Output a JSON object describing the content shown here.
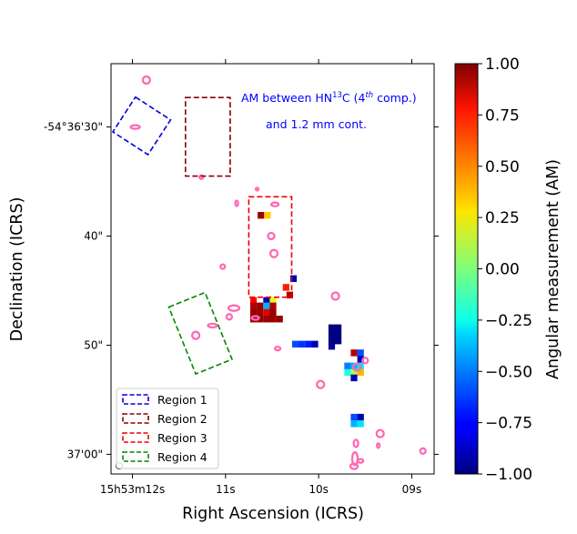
{
  "chart_data": {
    "type": "heatmap",
    "xlabel": "Right Ascension (ICRS)",
    "ylabel": "Declination (ICRS)",
    "x_ticks": [
      {
        "ra_s": 12,
        "label": "15h53m12s"
      },
      {
        "ra_s": 11,
        "label": "11s"
      },
      {
        "ra_s": 10,
        "label": "10s"
      },
      {
        "ra_s": 9,
        "label": "09s"
      }
    ],
    "y_ticks": [
      {
        "dec_s": 30,
        "label": "-54°36'30\""
      },
      {
        "dec_s": 40,
        "label": "40\""
      },
      {
        "dec_s": 50,
        "label": "50\""
      },
      {
        "dec_s": 60,
        "label": "37'00\""
      }
    ],
    "xlim_ra_s": [
      12.23,
      8.76
    ],
    "ylim_dec_s": [
      24.2,
      61.8
    ],
    "annotation": {
      "line1": "AM between HN",
      "iso": "13",
      "mid": "C (4",
      "ord": "th",
      "end": " comp.)",
      "line2": "and 1.2 mm cont.",
      "color": "#0000ff"
    },
    "colorbar": {
      "label": "Angular measurement (AM)",
      "cmap": "jet",
      "range": [
        -1.0,
        1.0
      ],
      "ticks": [
        "1.00",
        "0.75",
        "0.50",
        "0.25",
        "0.00",
        "−0.25",
        "−0.50",
        "−0.75",
        "−1.00"
      ]
    },
    "regions": [
      {
        "name": "Region 1",
        "color": "#0000dd",
        "center": [
          11.9,
          29.9
        ],
        "size": [
          0.45,
          3.8
        ],
        "angle_deg": 33
      },
      {
        "name": "Region 2",
        "color": "#8b0000",
        "center": [
          11.19,
          30.9
        ],
        "size": [
          0.48,
          7.2
        ],
        "angle_deg": 0
      },
      {
        "name": "Region 3",
        "color": "#ee0000",
        "center": [
          10.52,
          41.0
        ],
        "size": [
          0.46,
          9.2
        ],
        "angle_deg": 0
      },
      {
        "name": "Region 4",
        "color": "#008800",
        "center": [
          11.27,
          48.9
        ],
        "size": [
          0.42,
          6.6
        ],
        "angle_deg": -22
      }
    ],
    "pixels": [
      {
        "ra_s": 10.62,
        "dec_s": 38.1,
        "am": 0.95
      },
      {
        "ra_s": 10.55,
        "dec_s": 38.1,
        "am": 0.35
      },
      {
        "ra_s": 10.31,
        "dec_s": 45.4,
        "am": 0.9
      },
      {
        "ra_s": 10.35,
        "dec_s": 44.7,
        "am": 0.7
      },
      {
        "ra_s": 10.27,
        "dec_s": 43.9,
        "am": -0.9
      },
      {
        "ra_s": 10.7,
        "dec_s": 45.9,
        "am": 0.75
      },
      {
        "ra_s": 10.7,
        "dec_s": 46.4,
        "am": 0.9
      },
      {
        "ra_s": 10.7,
        "dec_s": 47.0,
        "am": 0.95
      },
      {
        "ra_s": 10.7,
        "dec_s": 47.6,
        "am": 0.95
      },
      {
        "ra_s": 10.63,
        "dec_s": 46.4,
        "am": 0.95
      },
      {
        "ra_s": 10.63,
        "dec_s": 47.0,
        "am": 0.95
      },
      {
        "ra_s": 10.63,
        "dec_s": 47.6,
        "am": 0.95
      },
      {
        "ra_s": 10.56,
        "dec_s": 45.9,
        "am": -0.9
      },
      {
        "ra_s": 10.56,
        "dec_s": 46.4,
        "am": -0.4
      },
      {
        "ra_s": 10.56,
        "dec_s": 47.0,
        "am": 0.8
      },
      {
        "ra_s": 10.56,
        "dec_s": 47.6,
        "am": 0.95
      },
      {
        "ra_s": 10.49,
        "dec_s": 45.9,
        "am": 0.2
      },
      {
        "ra_s": 10.49,
        "dec_s": 46.4,
        "am": 0.9
      },
      {
        "ra_s": 10.49,
        "dec_s": 47.0,
        "am": 0.95
      },
      {
        "ra_s": 10.49,
        "dec_s": 47.6,
        "am": 0.95
      },
      {
        "ra_s": 10.42,
        "dec_s": 47.6,
        "am": 0.95
      },
      {
        "ra_s": 10.25,
        "dec_s": 49.9,
        "am": -0.6
      },
      {
        "ra_s": 10.18,
        "dec_s": 49.9,
        "am": -0.65
      },
      {
        "ra_s": 10.11,
        "dec_s": 49.9,
        "am": -0.7
      },
      {
        "ra_s": 10.04,
        "dec_s": 49.9,
        "am": -0.9
      },
      {
        "ra_s": 9.86,
        "dec_s": 48.4,
        "am": -1.0
      },
      {
        "ra_s": 9.79,
        "dec_s": 48.4,
        "am": -1.0
      },
      {
        "ra_s": 9.86,
        "dec_s": 49.0,
        "am": -1.0
      },
      {
        "ra_s": 9.79,
        "dec_s": 49.0,
        "am": -1.0
      },
      {
        "ra_s": 9.86,
        "dec_s": 49.6,
        "am": -1.0
      },
      {
        "ra_s": 9.79,
        "dec_s": 49.6,
        "am": -1.0
      },
      {
        "ra_s": 9.86,
        "dec_s": 50.1,
        "am": -0.95
      },
      {
        "ra_s": 9.62,
        "dec_s": 50.7,
        "am": 0.9
      },
      {
        "ra_s": 9.55,
        "dec_s": 50.7,
        "am": -0.6
      },
      {
        "ra_s": 9.55,
        "dec_s": 51.3,
        "am": -0.9
      },
      {
        "ra_s": 9.69,
        "dec_s": 51.9,
        "am": -0.5
      },
      {
        "ra_s": 9.62,
        "dec_s": 51.9,
        "am": -0.4
      },
      {
        "ra_s": 9.55,
        "dec_s": 51.9,
        "am": -0.3
      },
      {
        "ra_s": 9.69,
        "dec_s": 52.5,
        "am": -0.2
      },
      {
        "ra_s": 9.62,
        "dec_s": 52.5,
        "am": 0.1
      },
      {
        "ra_s": 9.55,
        "dec_s": 52.5,
        "am": 0.4
      },
      {
        "ra_s": 9.62,
        "dec_s": 53.0,
        "am": -0.9
      },
      {
        "ra_s": 9.62,
        "dec_s": 56.6,
        "am": -0.6
      },
      {
        "ra_s": 9.55,
        "dec_s": 56.6,
        "am": -0.9
      },
      {
        "ra_s": 9.62,
        "dec_s": 57.2,
        "am": -0.4
      },
      {
        "ra_s": 9.55,
        "dec_s": 57.2,
        "am": -0.3
      }
    ],
    "contours": [
      {
        "ra_s": 11.85,
        "dec_s": 25.7,
        "rx": 4,
        "ry": 4
      },
      {
        "ra_s": 11.97,
        "dec_s": 30.0,
        "rx": 5,
        "ry": 2
      },
      {
        "ra_s": 11.26,
        "dec_s": 34.6,
        "rx": 2,
        "ry": 2
      },
      {
        "ra_s": 10.66,
        "dec_s": 35.7,
        "rx": 1.5,
        "ry": 1.5
      },
      {
        "ra_s": 10.88,
        "dec_s": 37.0,
        "rx": 1.5,
        "ry": 3
      },
      {
        "ra_s": 10.47,
        "dec_s": 37.1,
        "rx": 4,
        "ry": 2
      },
      {
        "ra_s": 10.51,
        "dec_s": 40.0,
        "rx": 3.5,
        "ry": 3.5
      },
      {
        "ra_s": 10.48,
        "dec_s": 41.6,
        "rx": 4,
        "ry": 4
      },
      {
        "ra_s": 11.03,
        "dec_s": 42.8,
        "rx": 2.5,
        "ry": 2.5
      },
      {
        "ra_s": 10.91,
        "dec_s": 46.6,
        "rx": 6,
        "ry": 3
      },
      {
        "ra_s": 10.96,
        "dec_s": 47.4,
        "rx": 3,
        "ry": 3
      },
      {
        "ra_s": 11.14,
        "dec_s": 48.2,
        "rx": 5,
        "ry": 2
      },
      {
        "ra_s": 11.32,
        "dec_s": 49.1,
        "rx": 4,
        "ry": 4
      },
      {
        "ra_s": 10.68,
        "dec_s": 47.5,
        "rx": 4,
        "ry": 2
      },
      {
        "ra_s": 10.44,
        "dec_s": 50.3,
        "rx": 3,
        "ry": 2
      },
      {
        "ra_s": 9.82,
        "dec_s": 45.5,
        "rx": 4,
        "ry": 4
      },
      {
        "ra_s": 9.98,
        "dec_s": 53.6,
        "rx": 4,
        "ry": 4
      },
      {
        "ra_s": 9.59,
        "dec_s": 52.0,
        "rx": 4,
        "ry": 4
      },
      {
        "ra_s": 9.5,
        "dec_s": 51.4,
        "rx": 3,
        "ry": 3
      },
      {
        "ra_s": 9.34,
        "dec_s": 58.1,
        "rx": 4,
        "ry": 4
      },
      {
        "ra_s": 9.6,
        "dec_s": 59.0,
        "rx": 2.5,
        "ry": 4
      },
      {
        "ra_s": 9.61,
        "dec_s": 60.4,
        "rx": 3,
        "ry": 7
      },
      {
        "ra_s": 9.55,
        "dec_s": 60.6,
        "rx": 3,
        "ry": 2
      },
      {
        "ra_s": 9.62,
        "dec_s": 61.1,
        "rx": 4,
        "ry": 3
      },
      {
        "ra_s": 9.36,
        "dec_s": 59.2,
        "rx": 1.5,
        "ry": 2.5
      },
      {
        "ra_s": 8.88,
        "dec_s": 59.7,
        "rx": 3,
        "ry": 3
      }
    ],
    "contour_color": "#ff69b4",
    "legend_position": "lower-left"
  }
}
